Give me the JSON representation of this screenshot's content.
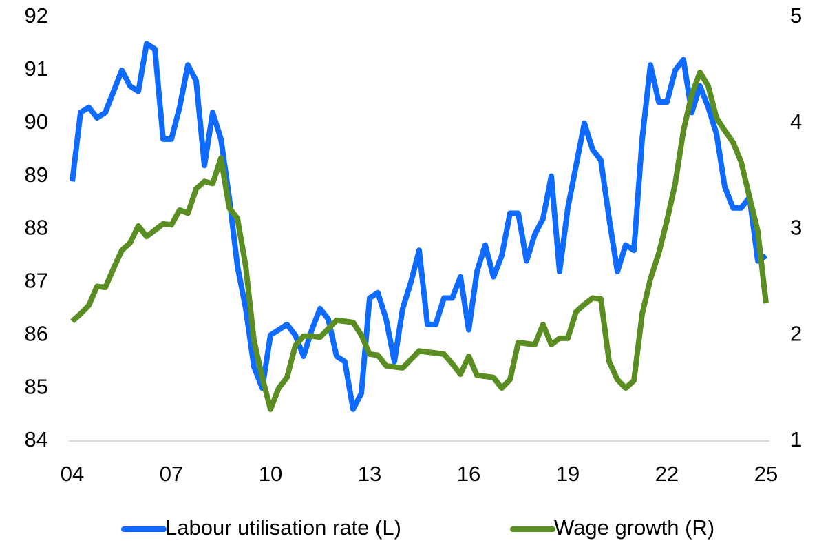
{
  "chart_data": {
    "type": "line",
    "x": [
      2004,
      2004.25,
      2004.5,
      2004.75,
      2005,
      2005.25,
      2005.5,
      2005.75,
      2006,
      2006.25,
      2006.5,
      2006.75,
      2007,
      2007.25,
      2007.5,
      2007.75,
      2008,
      2008.25,
      2008.5,
      2008.75,
      2009,
      2009.25,
      2009.5,
      2009.75,
      2010,
      2010.25,
      2010.5,
      2010.75,
      2011,
      2011.25,
      2011.5,
      2011.75,
      2012,
      2012.25,
      2012.5,
      2012.75,
      2013,
      2013.25,
      2013.5,
      2013.75,
      2014,
      2014.25,
      2014.5,
      2014.75,
      2015,
      2015.25,
      2015.5,
      2015.75,
      2016,
      2016.25,
      2016.5,
      2016.75,
      2017,
      2017.25,
      2017.5,
      2017.75,
      2018,
      2018.25,
      2018.5,
      2018.75,
      2019,
      2019.25,
      2019.5,
      2019.75,
      2020,
      2020.25,
      2020.5,
      2020.75,
      2021,
      2021.25,
      2021.5,
      2021.75,
      2022,
      2022.25,
      2022.5,
      2022.75,
      2023,
      2023.25,
      2023.5,
      2023.75,
      2024,
      2024.25,
      2024.5,
      2024.75,
      2025
    ],
    "series": [
      {
        "name": "Labour utilisation rate (L)",
        "color": "#0f6bff",
        "axis": "y",
        "values": [
          88.9,
          90.2,
          90.3,
          90.1,
          90.2,
          90.6,
          91.0,
          90.7,
          90.6,
          91.5,
          91.4,
          89.7,
          89.7,
          90.3,
          91.1,
          90.8,
          89.2,
          90.2,
          89.7,
          88.6,
          87.3,
          86.5,
          85.4,
          85.0,
          86.0,
          86.1,
          86.2,
          86.0,
          85.6,
          86.1,
          86.5,
          86.3,
          85.6,
          85.5,
          84.6,
          84.9,
          86.7,
          86.8,
          86.3,
          85.5,
          86.5,
          87.0,
          87.6,
          86.2,
          86.2,
          86.7,
          86.7,
          87.1,
          86.1,
          87.2,
          87.7,
          87.1,
          87.5,
          88.3,
          88.3,
          87.4,
          87.9,
          88.2,
          89.0,
          87.2,
          88.4,
          89.2,
          90.0,
          89.5,
          89.3,
          88.2,
          87.2,
          87.7,
          87.6,
          89.7,
          91.1,
          90.4,
          90.4,
          91.0,
          91.2,
          90.2,
          90.7,
          90.3,
          89.8,
          88.8,
          88.4,
          88.4,
          88.6,
          87.4,
          87.5
        ]
      },
      {
        "name": "Wage growth (R)",
        "color": "#5a8e22",
        "axis": "y2",
        "values": [
          2.13,
          2.2,
          2.28,
          2.46,
          2.45,
          2.63,
          2.8,
          2.87,
          3.03,
          2.93,
          2.99,
          3.05,
          3.04,
          3.18,
          3.15,
          3.38,
          3.45,
          3.43,
          3.67,
          3.2,
          3.1,
          2.65,
          1.95,
          1.6,
          1.3,
          1.5,
          1.6,
          1.9,
          1.99,
          1.99,
          1.98,
          2.06,
          2.14,
          2.13,
          2.12,
          2.0,
          1.82,
          1.81,
          1.71,
          1.7,
          1.69,
          1.77,
          1.85,
          1.84,
          1.83,
          1.82,
          1.73,
          1.63,
          1.8,
          1.62,
          1.61,
          1.6,
          1.5,
          1.58,
          1.93,
          1.92,
          1.91,
          2.1,
          1.91,
          1.97,
          1.97,
          2.22,
          2.29,
          2.35,
          2.34,
          1.75,
          1.58,
          1.5,
          1.57,
          2.2,
          2.53,
          2.77,
          3.08,
          3.43,
          3.93,
          4.27,
          4.48,
          4.35,
          4.05,
          3.93,
          3.82,
          3.63,
          3.3,
          2.98,
          2.3
        ]
      }
    ],
    "xlim": [
      2004,
      2025
    ],
    "xticks": [
      {
        "value": 2004,
        "label": "04"
      },
      {
        "value": 2007,
        "label": "07"
      },
      {
        "value": 2010,
        "label": "10"
      },
      {
        "value": 2013,
        "label": "13"
      },
      {
        "value": 2016,
        "label": "16"
      },
      {
        "value": 2019,
        "label": "19"
      },
      {
        "value": 2022,
        "label": "22"
      },
      {
        "value": 2025,
        "label": "25"
      }
    ],
    "ylim": [
      84,
      92
    ],
    "yticks": [
      84,
      85,
      86,
      87,
      88,
      89,
      90,
      91,
      92
    ],
    "y2lim": [
      1,
      5
    ],
    "y2ticks": [
      1,
      2,
      3,
      4,
      5
    ],
    "grid": false,
    "legend": "bottom"
  }
}
